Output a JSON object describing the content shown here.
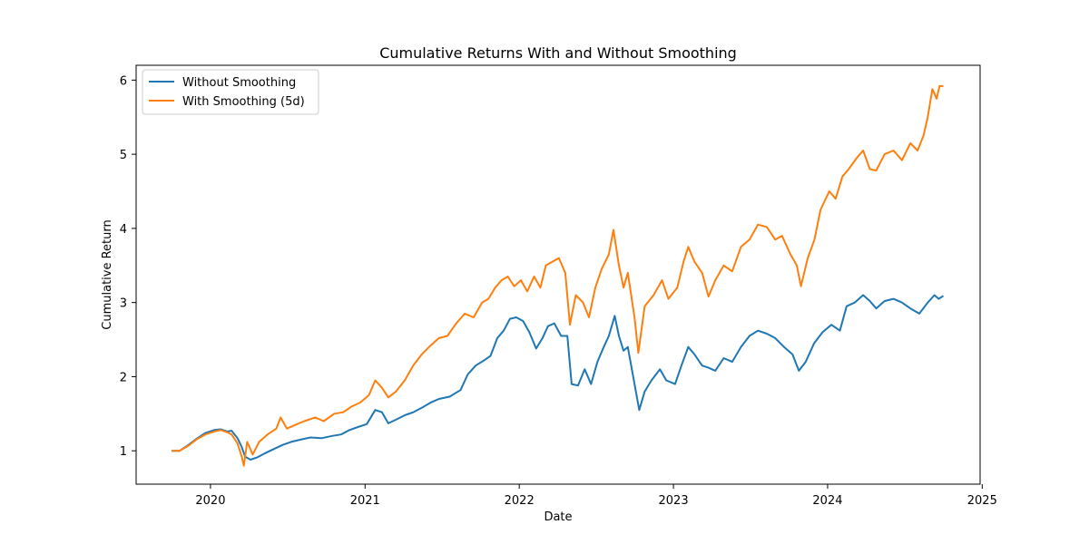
{
  "chart_data": {
    "type": "line",
    "title": "Cumulative Returns With and Without Smoothing",
    "xlabel": "Date",
    "ylabel": "Cumulative Return",
    "xlim": [
      "2019-07-09",
      "2024-12-27"
    ],
    "ylim": [
      0.55,
      6.2
    ],
    "xticks": [
      "2020",
      "2021",
      "2022",
      "2023",
      "2024",
      "2025"
    ],
    "yticks": [
      1,
      2,
      3,
      4,
      5,
      6
    ],
    "grid": false,
    "legend_position": "top-left",
    "series": [
      {
        "name": "Without Smoothing",
        "color": "#1f77b4",
        "points": [
          [
            "2019-10-01",
            1.0
          ],
          [
            "2019-10-20",
            1.0
          ],
          [
            "2019-11-10",
            1.08
          ],
          [
            "2019-12-01",
            1.17
          ],
          [
            "2019-12-20",
            1.24
          ],
          [
            "2020-01-10",
            1.28
          ],
          [
            "2020-01-25",
            1.29
          ],
          [
            "2020-02-10",
            1.26
          ],
          [
            "2020-02-20",
            1.27
          ],
          [
            "2020-03-05",
            1.17
          ],
          [
            "2020-03-15",
            1.05
          ],
          [
            "2020-03-23",
            0.92
          ],
          [
            "2020-04-05",
            0.88
          ],
          [
            "2020-04-20",
            0.91
          ],
          [
            "2020-05-10",
            0.97
          ],
          [
            "2020-06-01",
            1.03
          ],
          [
            "2020-06-20",
            1.08
          ],
          [
            "2020-07-10",
            1.12
          ],
          [
            "2020-08-01",
            1.15
          ],
          [
            "2020-08-25",
            1.18
          ],
          [
            "2020-09-20",
            1.17
          ],
          [
            "2020-10-15",
            1.2
          ],
          [
            "2020-11-05",
            1.22
          ],
          [
            "2020-11-25",
            1.28
          ],
          [
            "2020-12-15",
            1.32
          ],
          [
            "2021-01-05",
            1.36
          ],
          [
            "2021-01-25",
            1.55
          ],
          [
            "2021-02-10",
            1.52
          ],
          [
            "2021-02-25",
            1.37
          ],
          [
            "2021-03-15",
            1.42
          ],
          [
            "2021-04-05",
            1.48
          ],
          [
            "2021-04-25",
            1.52
          ],
          [
            "2021-05-15",
            1.58
          ],
          [
            "2021-06-05",
            1.65
          ],
          [
            "2021-06-25",
            1.7
          ],
          [
            "2021-07-20",
            1.73
          ],
          [
            "2021-08-15",
            1.82
          ],
          [
            "2021-09-01",
            2.03
          ],
          [
            "2021-09-20",
            2.15
          ],
          [
            "2021-10-10",
            2.22
          ],
          [
            "2021-10-25",
            2.28
          ],
          [
            "2021-11-10",
            2.52
          ],
          [
            "2021-11-25",
            2.62
          ],
          [
            "2021-12-10",
            2.78
          ],
          [
            "2021-12-25",
            2.8
          ],
          [
            "2022-01-10",
            2.75
          ],
          [
            "2022-01-25",
            2.6
          ],
          [
            "2022-02-10",
            2.38
          ],
          [
            "2022-02-25",
            2.52
          ],
          [
            "2022-03-10",
            2.68
          ],
          [
            "2022-03-25",
            2.72
          ],
          [
            "2022-04-10",
            2.55
          ],
          [
            "2022-04-25",
            2.55
          ],
          [
            "2022-05-05",
            1.9
          ],
          [
            "2022-05-20",
            1.88
          ],
          [
            "2022-06-05",
            2.1
          ],
          [
            "2022-06-20",
            1.9
          ],
          [
            "2022-07-05",
            2.2
          ],
          [
            "2022-07-20",
            2.4
          ],
          [
            "2022-08-01",
            2.55
          ],
          [
            "2022-08-15",
            2.82
          ],
          [
            "2022-08-25",
            2.55
          ],
          [
            "2022-09-05",
            2.35
          ],
          [
            "2022-09-15",
            2.4
          ],
          [
            "2022-10-01",
            1.9
          ],
          [
            "2022-10-12",
            1.55
          ],
          [
            "2022-10-25",
            1.8
          ],
          [
            "2022-11-10",
            1.95
          ],
          [
            "2022-11-30",
            2.1
          ],
          [
            "2022-12-15",
            1.95
          ],
          [
            "2023-01-05",
            1.9
          ],
          [
            "2023-01-20",
            2.15
          ],
          [
            "2023-02-05",
            2.4
          ],
          [
            "2023-02-20",
            2.3
          ],
          [
            "2023-03-10",
            2.15
          ],
          [
            "2023-03-25",
            2.12
          ],
          [
            "2023-04-10",
            2.08
          ],
          [
            "2023-04-30",
            2.25
          ],
          [
            "2023-05-20",
            2.2
          ],
          [
            "2023-06-10",
            2.4
          ],
          [
            "2023-06-30",
            2.55
          ],
          [
            "2023-07-20",
            2.62
          ],
          [
            "2023-08-10",
            2.58
          ],
          [
            "2023-08-30",
            2.52
          ],
          [
            "2023-09-20",
            2.4
          ],
          [
            "2023-10-10",
            2.3
          ],
          [
            "2023-10-25",
            2.08
          ],
          [
            "2023-11-10",
            2.2
          ],
          [
            "2023-11-30",
            2.45
          ],
          [
            "2023-12-20",
            2.6
          ],
          [
            "2024-01-10",
            2.7
          ],
          [
            "2024-01-30",
            2.62
          ],
          [
            "2024-02-15",
            2.95
          ],
          [
            "2024-03-05",
            3.0
          ],
          [
            "2024-03-25",
            3.1
          ],
          [
            "2024-04-10",
            3.02
          ],
          [
            "2024-04-25",
            2.92
          ],
          [
            "2024-05-15",
            3.02
          ],
          [
            "2024-06-05",
            3.05
          ],
          [
            "2024-06-25",
            3.0
          ],
          [
            "2024-07-15",
            2.92
          ],
          [
            "2024-08-05",
            2.85
          ],
          [
            "2024-08-25",
            3.0
          ],
          [
            "2024-09-10",
            3.1
          ],
          [
            "2024-09-20",
            3.05
          ],
          [
            "2024-10-01",
            3.09
          ]
        ]
      },
      {
        "name": "With Smoothing (5d)",
        "color": "#ff7f0e",
        "points": [
          [
            "2019-10-01",
            1.0
          ],
          [
            "2019-10-20",
            1.0
          ],
          [
            "2019-11-10",
            1.07
          ],
          [
            "2019-12-01",
            1.16
          ],
          [
            "2019-12-20",
            1.22
          ],
          [
            "2020-01-10",
            1.26
          ],
          [
            "2020-01-25",
            1.28
          ],
          [
            "2020-02-10",
            1.25
          ],
          [
            "2020-02-20",
            1.22
          ],
          [
            "2020-03-05",
            1.1
          ],
          [
            "2020-03-15",
            0.92
          ],
          [
            "2020-03-20",
            0.8
          ],
          [
            "2020-03-28",
            1.12
          ],
          [
            "2020-04-10",
            0.95
          ],
          [
            "2020-04-25",
            1.12
          ],
          [
            "2020-05-15",
            1.22
          ],
          [
            "2020-06-05",
            1.3
          ],
          [
            "2020-06-15",
            1.45
          ],
          [
            "2020-06-30",
            1.3
          ],
          [
            "2020-07-20",
            1.35
          ],
          [
            "2020-08-10",
            1.4
          ],
          [
            "2020-09-05",
            1.45
          ],
          [
            "2020-09-25",
            1.4
          ],
          [
            "2020-10-20",
            1.5
          ],
          [
            "2020-11-10",
            1.52
          ],
          [
            "2020-12-01",
            1.6
          ],
          [
            "2020-12-20",
            1.65
          ],
          [
            "2021-01-10",
            1.75
          ],
          [
            "2021-01-25",
            1.95
          ],
          [
            "2021-02-10",
            1.85
          ],
          [
            "2021-02-25",
            1.72
          ],
          [
            "2021-03-15",
            1.8
          ],
          [
            "2021-04-05",
            1.95
          ],
          [
            "2021-04-25",
            2.15
          ],
          [
            "2021-05-15",
            2.3
          ],
          [
            "2021-06-05",
            2.42
          ],
          [
            "2021-06-25",
            2.52
          ],
          [
            "2021-07-15",
            2.55
          ],
          [
            "2021-08-05",
            2.72
          ],
          [
            "2021-08-25",
            2.85
          ],
          [
            "2021-09-15",
            2.8
          ],
          [
            "2021-10-05",
            3.0
          ],
          [
            "2021-10-20",
            3.05
          ],
          [
            "2021-11-05",
            3.2
          ],
          [
            "2021-11-20",
            3.3
          ],
          [
            "2021-12-05",
            3.35
          ],
          [
            "2021-12-20",
            3.22
          ],
          [
            "2022-01-05",
            3.3
          ],
          [
            "2022-01-20",
            3.15
          ],
          [
            "2022-02-05",
            3.35
          ],
          [
            "2022-02-20",
            3.2
          ],
          [
            "2022-03-05",
            3.5
          ],
          [
            "2022-03-20",
            3.55
          ],
          [
            "2022-04-05",
            3.6
          ],
          [
            "2022-04-20",
            3.4
          ],
          [
            "2022-05-01",
            2.7
          ],
          [
            "2022-05-15",
            3.1
          ],
          [
            "2022-06-01",
            3.0
          ],
          [
            "2022-06-15",
            2.8
          ],
          [
            "2022-06-30",
            3.2
          ],
          [
            "2022-07-15",
            3.45
          ],
          [
            "2022-08-01",
            3.65
          ],
          [
            "2022-08-12",
            3.98
          ],
          [
            "2022-08-25",
            3.5
          ],
          [
            "2022-09-05",
            3.2
          ],
          [
            "2022-09-15",
            3.4
          ],
          [
            "2022-10-01",
            2.8
          ],
          [
            "2022-10-10",
            2.32
          ],
          [
            "2022-10-25",
            2.95
          ],
          [
            "2022-11-15",
            3.1
          ],
          [
            "2022-12-05",
            3.3
          ],
          [
            "2022-12-20",
            3.05
          ],
          [
            "2023-01-10",
            3.2
          ],
          [
            "2023-01-25",
            3.55
          ],
          [
            "2023-02-05",
            3.75
          ],
          [
            "2023-02-20",
            3.55
          ],
          [
            "2023-03-10",
            3.4
          ],
          [
            "2023-03-25",
            3.08
          ],
          [
            "2023-04-10",
            3.3
          ],
          [
            "2023-04-30",
            3.5
          ],
          [
            "2023-05-20",
            3.42
          ],
          [
            "2023-06-10",
            3.75
          ],
          [
            "2023-06-30",
            3.85
          ],
          [
            "2023-07-20",
            4.05
          ],
          [
            "2023-08-10",
            4.02
          ],
          [
            "2023-08-30",
            3.85
          ],
          [
            "2023-09-15",
            3.9
          ],
          [
            "2023-10-05",
            3.65
          ],
          [
            "2023-10-20",
            3.5
          ],
          [
            "2023-10-30",
            3.22
          ],
          [
            "2023-11-15",
            3.6
          ],
          [
            "2023-12-01",
            3.85
          ],
          [
            "2023-12-15",
            4.25
          ],
          [
            "2024-01-05",
            4.5
          ],
          [
            "2024-01-20",
            4.4
          ],
          [
            "2024-02-05",
            4.7
          ],
          [
            "2024-02-20",
            4.8
          ],
          [
            "2024-03-10",
            4.95
          ],
          [
            "2024-03-25",
            5.05
          ],
          [
            "2024-04-10",
            4.8
          ],
          [
            "2024-04-25",
            4.78
          ],
          [
            "2024-05-15",
            5.0
          ],
          [
            "2024-06-05",
            5.05
          ],
          [
            "2024-06-25",
            4.92
          ],
          [
            "2024-07-15",
            5.15
          ],
          [
            "2024-08-01",
            5.05
          ],
          [
            "2024-08-15",
            5.25
          ],
          [
            "2024-08-25",
            5.5
          ],
          [
            "2024-09-05",
            5.88
          ],
          [
            "2024-09-15",
            5.75
          ],
          [
            "2024-09-22",
            5.92
          ],
          [
            "2024-10-01",
            5.92
          ]
        ]
      }
    ]
  }
}
